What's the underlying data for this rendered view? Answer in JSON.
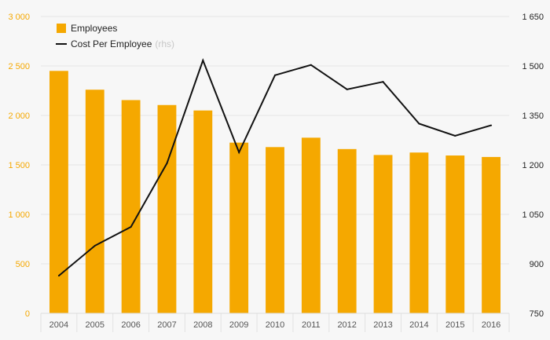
{
  "chart_data": {
    "type": "bar+line",
    "categories": [
      "2004",
      "2005",
      "2006",
      "2007",
      "2008",
      "2009",
      "2010",
      "2011",
      "2012",
      "2013",
      "2014",
      "2015",
      "2016"
    ],
    "series": [
      {
        "name": "Employees",
        "type": "bar",
        "axis": "left",
        "color": "#f5a800",
        "values": [
          2450,
          2260,
          2155,
          2105,
          2050,
          1725,
          1680,
          1775,
          1660,
          1600,
          1625,
          1595,
          1580
        ]
      },
      {
        "name": "Cost Per Employee",
        "name_suffix": "(rhs)",
        "type": "line",
        "axis": "right",
        "color": "#111111",
        "values": [
          864,
          955,
          1012,
          1205,
          1517,
          1238,
          1472,
          1503,
          1429,
          1452,
          1325,
          1288,
          1320
        ]
      }
    ],
    "y_left": {
      "ylim": [
        0,
        3000
      ],
      "ticks": [
        0,
        500,
        1000,
        1500,
        2000,
        2500,
        3000
      ],
      "tick_labels": [
        "0",
        "500",
        "1 000",
        "1 500",
        "2 000",
        "2 500",
        "3 000"
      ],
      "color": "#f5a800"
    },
    "y_right": {
      "ylim": [
        750,
        1650
      ],
      "ticks": [
        750,
        900,
        1050,
        1200,
        1350,
        1500,
        1650
      ],
      "tick_labels": [
        "750",
        "900",
        "1 050",
        "1 200",
        "1 350",
        "1 500",
        "1 650"
      ],
      "color": "#222222"
    },
    "grid": true,
    "legend": "top-left",
    "title": "",
    "xlabel": "",
    "ylabel": ""
  }
}
